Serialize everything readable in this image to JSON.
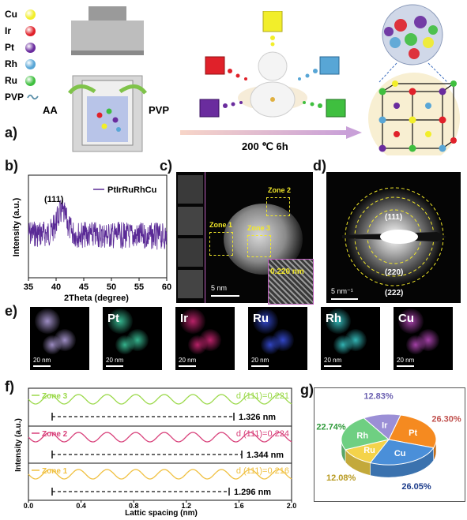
{
  "panel_labels": {
    "a": "a)",
    "b": "b)",
    "c": "c)",
    "d": "d)",
    "e": "e)",
    "f": "f)",
    "g": "g)"
  },
  "panel_a": {
    "legend": [
      {
        "label": "Cu",
        "color": "#f2ee2a"
      },
      {
        "label": "Ir",
        "color": "#e0212a"
      },
      {
        "label": "Pt",
        "color": "#6a2c9e"
      },
      {
        "label": "Rh",
        "color": "#58a6d6"
      },
      {
        "label": "Ru",
        "color": "#3fbf3f"
      }
    ],
    "pvp_label": "PVP",
    "aa_label": "AA",
    "pvp_arrow_label": "PVP",
    "condition": "200 ℃ 6h"
  },
  "panel_b": {
    "ylabel": "Intensity (a.u.)",
    "xlabel": "2Theta (degree)",
    "legend": "PtIrRuRhCu",
    "peak_label": "(111)",
    "xticks": [
      "35",
      "40",
      "45",
      "50",
      "55",
      "60"
    ]
  },
  "panel_c": {
    "zones": [
      "Zone 1",
      "Zone 2",
      "Zone 3"
    ],
    "spacing": "0.220 nm",
    "scale": "5 nm"
  },
  "panel_d": {
    "rings": [
      "(111)",
      "(220)",
      "(222)"
    ],
    "scale": "5 nm⁻¹"
  },
  "panel_e": {
    "maps": [
      {
        "title": "",
        "scale": "20 nm",
        "tint": "#b9a6e6"
      },
      {
        "title": "Pt",
        "scale": "20 nm",
        "tint": "#3fd3a6"
      },
      {
        "title": "Ir",
        "scale": "20 nm",
        "tint": "#d8287a"
      },
      {
        "title": "Ru",
        "scale": "20 nm",
        "tint": "#3a52e8"
      },
      {
        "title": "Rh",
        "scale": "20 nm",
        "tint": "#3bd3d3"
      },
      {
        "title": "Cu",
        "scale": "20 nm",
        "tint": "#c04cc4"
      }
    ]
  },
  "panel_f": {
    "ylabel": "Intensity (a.u.)",
    "xlabel": "Lattic spacing (nm)",
    "xticks": [
      "0.0",
      "0.4",
      "0.8",
      "1.2",
      "1.6",
      "2.0"
    ],
    "profiles": [
      {
        "name": "Zone 3",
        "d": "d (111)=0.221",
        "length": "1.326 nm",
        "color": "#9bd94a"
      },
      {
        "name": "Zone 2",
        "d": "d (111)=0.224",
        "length": "1.344 nm",
        "color": "#d8407a"
      },
      {
        "name": "Zone 1",
        "d": "d (111)=0.216",
        "length": "1.296 nm",
        "color": "#f0c040"
      }
    ]
  },
  "chart_data": {
    "type": "pie",
    "categories": [
      "Pt",
      "Cu",
      "Ru",
      "Rh",
      "Ir"
    ],
    "values": [
      26.3,
      26.05,
      12.08,
      22.74,
      12.83
    ],
    "labels": [
      "26.30%",
      "26.05%",
      "12.08%",
      "22.74%",
      "12.83%"
    ],
    "colors": [
      "#f58a20",
      "#4a8fd9",
      "#f4d34a",
      "#6fcf82",
      "#9b8fd6"
    ],
    "label_colors": [
      "#c0504d",
      "#1a3a8a",
      "#b89a20",
      "#2f9a3a",
      "#6a5fb0"
    ]
  }
}
